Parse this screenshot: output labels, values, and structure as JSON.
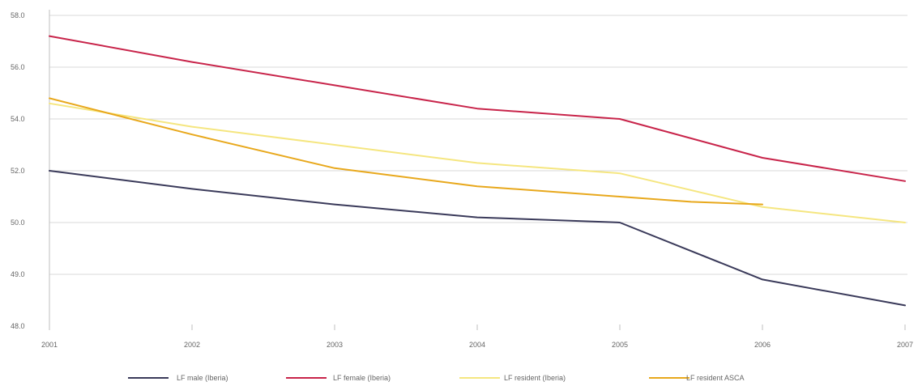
{
  "chart_data": {
    "type": "line",
    "title": "",
    "xlabel": "",
    "ylabel": "",
    "x": [
      "2001",
      "2002",
      "2003",
      "2004",
      "2005",
      "2006",
      "2007"
    ],
    "y_ticks": [
      "48.0",
      "49.0",
      "50.0",
      "52.0",
      "54.0",
      "56.0",
      "58.0"
    ],
    "y_tick_values": [
      48,
      49,
      50,
      52,
      54,
      56,
      58
    ],
    "grid": true,
    "legend_position": "bottom",
    "series": [
      {
        "name": "LF male (Iberia)",
        "color": "#3a3a5a",
        "points": [
          [
            0,
            52.0
          ],
          [
            1,
            51.3
          ],
          [
            2,
            50.7
          ],
          [
            3,
            50.2
          ],
          [
            4,
            50.0
          ],
          [
            5,
            48.9
          ],
          [
            6,
            48.4
          ]
        ]
      },
      {
        "name": "LF female (Iberia)",
        "color": "#c8244a",
        "points": [
          [
            0,
            57.2
          ],
          [
            1,
            56.2
          ],
          [
            2,
            55.3
          ],
          [
            3,
            54.4
          ],
          [
            4,
            54.0
          ],
          [
            5,
            52.5
          ],
          [
            6,
            51.6
          ]
        ]
      },
      {
        "name": "LF resident (Iberia)",
        "color": "#f5e680",
        "points": [
          [
            0,
            54.6
          ],
          [
            1,
            53.7
          ],
          [
            2,
            53.0
          ],
          [
            3,
            52.3
          ],
          [
            4,
            51.9
          ],
          [
            5,
            50.6
          ],
          [
            6,
            50.0
          ]
        ]
      },
      {
        "name": "LF resident ASCA",
        "color": "#e8a81c",
        "points": [
          [
            0,
            54.8
          ],
          [
            1,
            53.4
          ],
          [
            2,
            52.1
          ],
          [
            3,
            51.4
          ],
          [
            4,
            51.0
          ],
          [
            4.5,
            50.8
          ],
          [
            5,
            50.7
          ]
        ]
      }
    ]
  }
}
